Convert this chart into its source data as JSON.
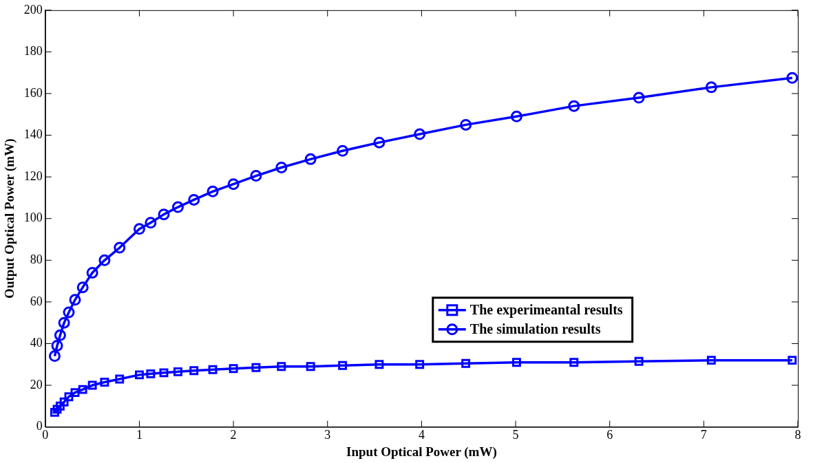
{
  "chart_data": {
    "type": "line",
    "xlabel": "Input Optical Power (mW)",
    "ylabel": "Output Optical Power (mW)",
    "xlim": [
      0,
      8
    ],
    "xticks": [
      0,
      1,
      2,
      3,
      4,
      5,
      6,
      7,
      8
    ],
    "ylim": [
      0,
      200
    ],
    "yticks": [
      0,
      20,
      40,
      60,
      80,
      100,
      120,
      140,
      160,
      180,
      200
    ],
    "grid": false,
    "legend": "right",
    "line_style": "solid",
    "x": [
      0.1,
      0.126,
      0.158,
      0.2,
      0.25,
      0.316,
      0.398,
      0.5,
      0.63,
      0.79,
      1,
      1.12,
      1.26,
      1.41,
      1.58,
      1.78,
      2,
      2.24,
      2.51,
      2.82,
      3.16,
      3.55,
      3.98,
      4.47,
      5.01,
      5.62,
      6.31,
      7.08,
      7.94
    ],
    "series": [
      {
        "name": "The experimeantal results",
        "color": "#0000ff",
        "marker": "square",
        "values": [
          7,
          8.5,
          10,
          12,
          14.5,
          16.5,
          18,
          20,
          21.5,
          23,
          25,
          25.5,
          26,
          26.5,
          27,
          27.5,
          28,
          28.5,
          29,
          29,
          29.5,
          30,
          30,
          30.5,
          31,
          31,
          31.5,
          32,
          32
        ]
      },
      {
        "name": "The simulation results",
        "color": "#0000ff",
        "marker": "circle",
        "values": [
          34,
          39,
          44,
          50,
          55,
          61,
          67,
          74,
          80,
          86,
          95,
          98,
          102,
          105.5,
          109,
          113,
          116.5,
          120.5,
          124.5,
          128.5,
          132.5,
          136.5,
          140.5,
          145,
          149,
          154,
          158,
          163,
          167.5
        ]
      }
    ]
  }
}
